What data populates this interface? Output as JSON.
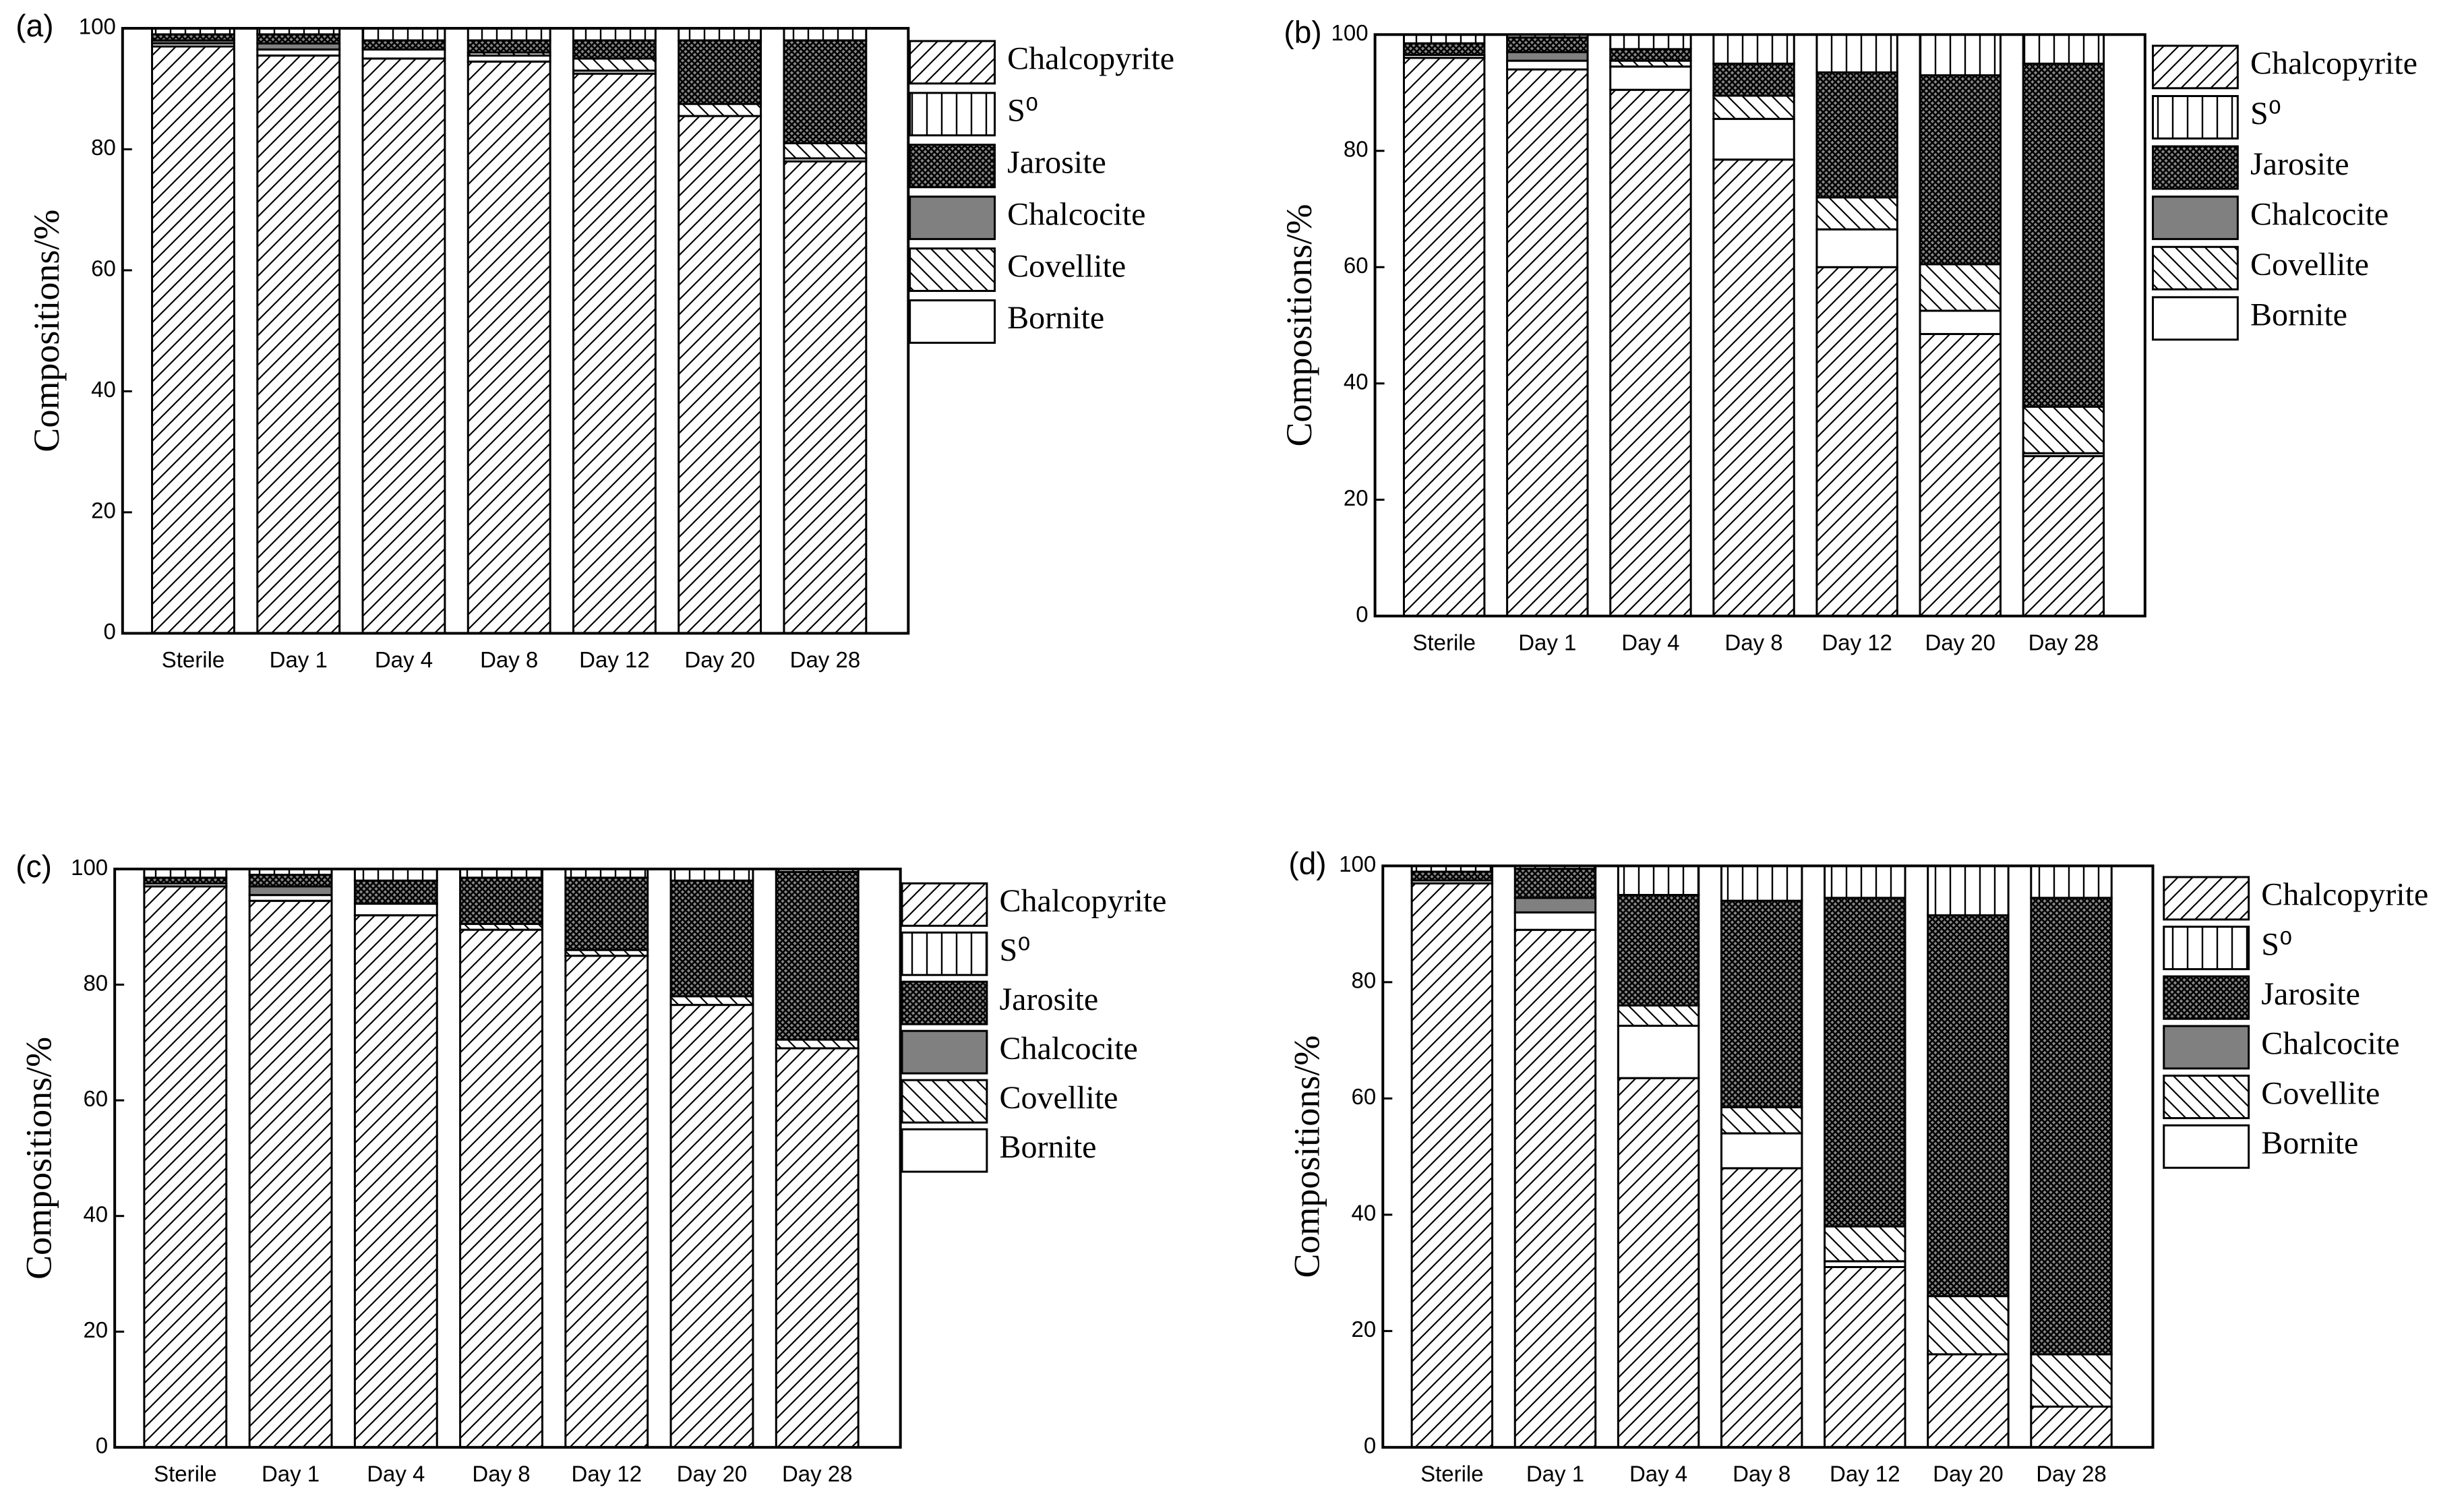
{
  "chart_data": [
    {
      "type": "bar",
      "stacked": true,
      "panel_label": "(a)",
      "ylabel": "Compositions/%",
      "categories": [
        "Sterile",
        "Day 1",
        "Day 4",
        "Day 8",
        "Day 12",
        "Day 20",
        "Day 28"
      ],
      "ylim": [
        0,
        100
      ],
      "yticks": [
        0,
        20,
        40,
        60,
        80,
        100
      ],
      "grid": false,
      "series": [
        {
          "name": "Chalcopyrite",
          "color": "#000000",
          "hatch": "forward",
          "values": [
            97,
            95.5,
            95,
            94.5,
            92.5,
            85.5,
            78
          ]
        },
        {
          "name": "Bornite",
          "color": "#ffffff",
          "hatch": "solid",
          "values": [
            0.5,
            1,
            1.5,
            1,
            0.5,
            0,
            0.5
          ]
        },
        {
          "name": "Covellite",
          "color": "#000000",
          "hatch": "back",
          "values": [
            0,
            0,
            0,
            0.5,
            2,
            2,
            2.5
          ]
        },
        {
          "name": "Chalcocite",
          "color": "#808080",
          "hatch": "solid",
          "values": [
            0.5,
            1,
            0,
            0,
            0,
            0,
            0
          ]
        },
        {
          "name": "Jarosite",
          "color": "#000000",
          "hatch": "cross",
          "values": [
            1,
            1.5,
            1.5,
            2,
            3,
            10.5,
            17
          ]
        },
        {
          "name": "S⁰",
          "color": "#000000",
          "hatch": "vertical",
          "values": [
            1,
            1,
            2,
            2,
            2,
            2,
            2
          ]
        }
      ]
    },
    {
      "type": "bar",
      "stacked": true,
      "panel_label": "(b)",
      "ylabel": "Compositions/%",
      "categories": [
        "Sterile",
        "Day 1",
        "Day 4",
        "Day 8",
        "Day 12",
        "Day 20",
        "Day 28"
      ],
      "ylim": [
        0,
        100
      ],
      "yticks": [
        0,
        20,
        40,
        60,
        80,
        100
      ],
      "grid": false,
      "series": [
        {
          "name": "Chalcopyrite",
          "color": "#000000",
          "hatch": "forward",
          "values": [
            96,
            94,
            90.5,
            78.5,
            60,
            48.5,
            27.5
          ]
        },
        {
          "name": "Bornite",
          "color": "#ffffff",
          "hatch": "solid",
          "values": [
            0.5,
            1.5,
            4,
            7,
            6.5,
            4,
            0.5
          ]
        },
        {
          "name": "Covellite",
          "color": "#000000",
          "hatch": "back",
          "values": [
            0,
            0,
            1,
            4,
            5.5,
            8,
            8
          ]
        },
        {
          "name": "Chalcocite",
          "color": "#808080",
          "hatch": "solid",
          "values": [
            0,
            1.5,
            0,
            0,
            0,
            0,
            0
          ]
        },
        {
          "name": "Jarosite",
          "color": "#000000",
          "hatch": "cross",
          "values": [
            2,
            2.5,
            2,
            5.5,
            21.5,
            32.5,
            59
          ]
        },
        {
          "name": "S⁰",
          "color": "#000000",
          "hatch": "vertical",
          "values": [
            1.5,
            0.5,
            2.5,
            5,
            6.5,
            7,
            5
          ]
        }
      ]
    },
    {
      "type": "bar",
      "stacked": true,
      "panel_label": "(c)",
      "ylabel": "Compositions/%",
      "categories": [
        "Sterile",
        "Day 1",
        "Day 4",
        "Day 8",
        "Day 12",
        "Day 20",
        "Day 28"
      ],
      "ylim": [
        0,
        100
      ],
      "yticks": [
        0,
        20,
        40,
        60,
        80,
        100
      ],
      "grid": false,
      "series": [
        {
          "name": "Chalcopyrite",
          "color": "#000000",
          "hatch": "forward",
          "values": [
            97,
            94.5,
            92,
            89.5,
            85,
            76.5,
            69
          ]
        },
        {
          "name": "Bornite",
          "color": "#ffffff",
          "hatch": "solid",
          "values": [
            0.5,
            1,
            2,
            0,
            0,
            0,
            0
          ]
        },
        {
          "name": "Covellite",
          "color": "#000000",
          "hatch": "back",
          "values": [
            0,
            0,
            0,
            1,
            1,
            1.5,
            1.5
          ]
        },
        {
          "name": "Chalcocite",
          "color": "#808080",
          "hatch": "solid",
          "values": [
            0,
            1.5,
            0,
            0,
            0,
            0,
            0
          ]
        },
        {
          "name": "Jarosite",
          "color": "#000000",
          "hatch": "cross",
          "values": [
            1,
            2,
            4,
            8,
            12.5,
            20,
            29
          ]
        },
        {
          "name": "S⁰",
          "color": "#000000",
          "hatch": "vertical",
          "values": [
            1.5,
            1,
            2,
            1.5,
            1.5,
            2,
            0.5
          ]
        }
      ]
    },
    {
      "type": "bar",
      "stacked": true,
      "panel_label": "(d)",
      "ylabel": "Compositions/%",
      "categories": [
        "Sterile",
        "Day 1",
        "Day 4",
        "Day 8",
        "Day 12",
        "Day 20",
        "Day 28"
      ],
      "ylim": [
        0,
        100
      ],
      "yticks": [
        0,
        20,
        40,
        60,
        80,
        100
      ],
      "grid": false,
      "series": [
        {
          "name": "Chalcopyrite",
          "color": "#000000",
          "hatch": "forward",
          "values": [
            97,
            89,
            63.5,
            48,
            31,
            16,
            7
          ]
        },
        {
          "name": "Bornite",
          "color": "#ffffff",
          "hatch": "solid",
          "values": [
            0.5,
            3,
            9,
            6,
            1,
            0,
            0
          ]
        },
        {
          "name": "Covellite",
          "color": "#000000",
          "hatch": "back",
          "values": [
            0,
            0,
            3.5,
            4.5,
            6,
            10,
            9
          ]
        },
        {
          "name": "Chalcocite",
          "color": "#808080",
          "hatch": "solid",
          "values": [
            0,
            2.5,
            0,
            0,
            0,
            0,
            0
          ]
        },
        {
          "name": "Jarosite",
          "color": "#000000",
          "hatch": "cross",
          "values": [
            1.5,
            5,
            19,
            35.5,
            56.5,
            65.5,
            78.5
          ]
        },
        {
          "name": "S⁰",
          "color": "#000000",
          "hatch": "vertical",
          "values": [
            1,
            0.5,
            5,
            6,
            5.5,
            8.5,
            5.5
          ]
        }
      ]
    }
  ]
}
